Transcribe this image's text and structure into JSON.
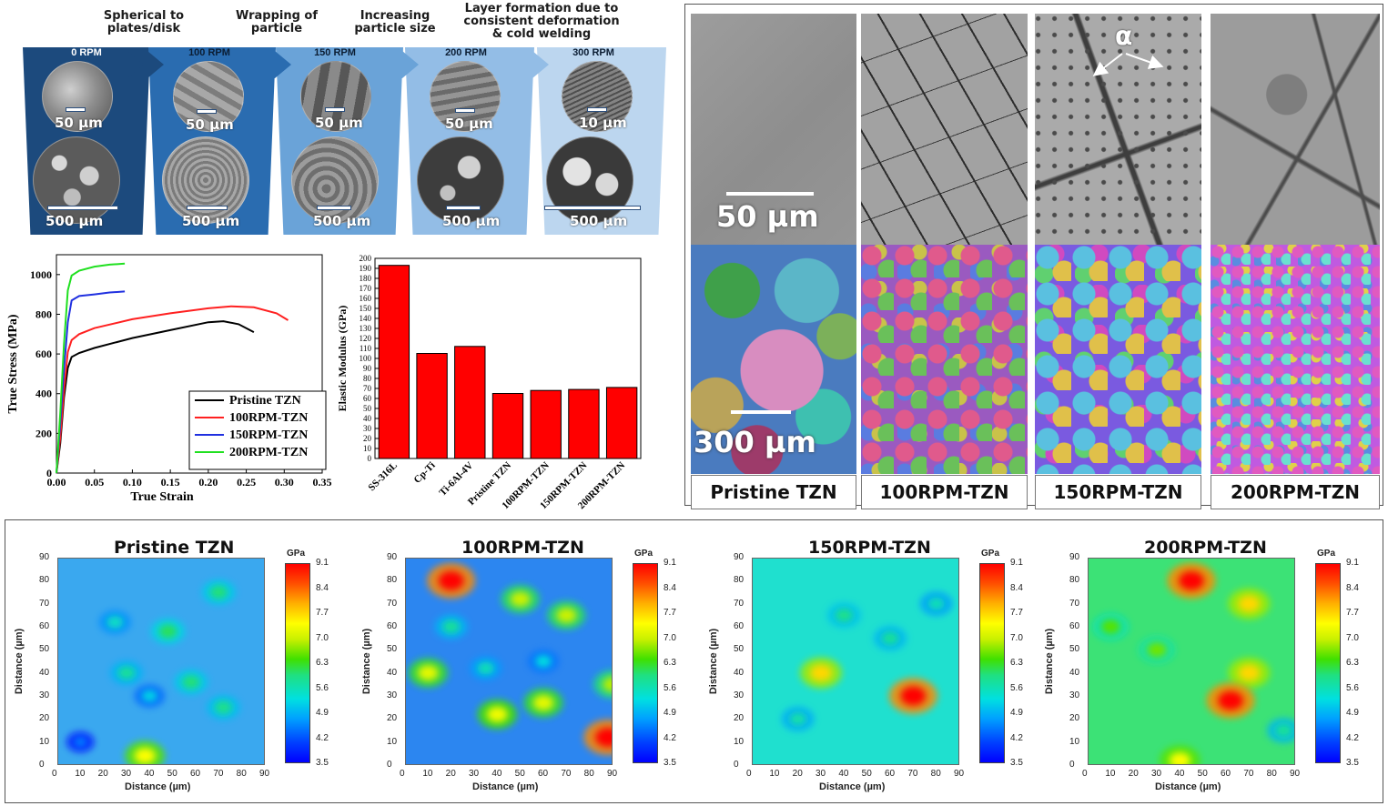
{
  "stages": [
    {
      "caption": "Spherical to\nplates/disk",
      "rpm": "0 RPM",
      "scale_small": "50 µm",
      "scale_big": "500 µm",
      "band_color": "#1c4a7d"
    },
    {
      "caption": "Wrapping of\nparticle",
      "rpm": "100 RPM",
      "scale_small": "50 µm",
      "scale_big": "500 µm",
      "band_color": "#2a6cb0"
    },
    {
      "caption": "Increasing\nparticle size",
      "rpm": "150 RPM",
      "scale_small": "50 µm",
      "scale_big": "500 µm",
      "band_color": "#6aa3d8"
    },
    {
      "caption": "Layer formation due to\nconsistent deformation\n& cold welding",
      "rpm": "200 RPM",
      "scale_small": "50 µm",
      "scale_big": "500 µm",
      "band_color": "#93bde6"
    },
    {
      "caption": "",
      "rpm": "300 RPM",
      "scale_small": "10 µm",
      "scale_big": "500 µm",
      "band_color": "#bcd6ef"
    }
  ],
  "stress_strain": {
    "chart_data": {
      "type": "line",
      "xlabel": "True Strain",
      "ylabel": "True Stress (MPa)",
      "xlim": [
        0,
        0.35
      ],
      "ylim": [
        0,
        1100
      ],
      "xticks": [
        "0.00",
        "0.05",
        "0.10",
        "0.15",
        "0.20",
        "0.25",
        "0.30",
        "0.35"
      ],
      "yticks": [
        "0",
        "200",
        "400",
        "600",
        "800",
        "1000"
      ],
      "legend_position": "bottom-right",
      "series": [
        {
          "name": "Pristine TZN",
          "color": "#000000",
          "points": [
            [
              0,
              0
            ],
            [
              0.005,
              150
            ],
            [
              0.01,
              380
            ],
            [
              0.015,
              530
            ],
            [
              0.02,
              585
            ],
            [
              0.03,
              605
            ],
            [
              0.05,
              630
            ],
            [
              0.1,
              680
            ],
            [
              0.15,
              720
            ],
            [
              0.2,
              760
            ],
            [
              0.22,
              765
            ],
            [
              0.24,
              750
            ],
            [
              0.26,
              710
            ]
          ]
        },
        {
          "name": "100RPM-TZN",
          "color": "#ff2020",
          "points": [
            [
              0,
              0
            ],
            [
              0.005,
              180
            ],
            [
              0.01,
              420
            ],
            [
              0.015,
              610
            ],
            [
              0.02,
              670
            ],
            [
              0.03,
              700
            ],
            [
              0.05,
              730
            ],
            [
              0.1,
              775
            ],
            [
              0.15,
              805
            ],
            [
              0.2,
              830
            ],
            [
              0.23,
              840
            ],
            [
              0.26,
              835
            ],
            [
              0.29,
              805
            ],
            [
              0.305,
              770
            ]
          ]
        },
        {
          "name": "150RPM-TZN",
          "color": "#2030e0",
          "points": [
            [
              0,
              0
            ],
            [
              0.005,
              250
            ],
            [
              0.01,
              520
            ],
            [
              0.015,
              760
            ],
            [
              0.02,
              870
            ],
            [
              0.03,
              892
            ],
            [
              0.05,
              900
            ],
            [
              0.07,
              910
            ],
            [
              0.09,
              915
            ]
          ]
        },
        {
          "name": "200RPM-TZN",
          "color": "#20e020",
          "points": [
            [
              0,
              0
            ],
            [
              0.005,
              300
            ],
            [
              0.01,
              650
            ],
            [
              0.015,
              920
            ],
            [
              0.02,
              995
            ],
            [
              0.03,
              1020
            ],
            [
              0.05,
              1040
            ],
            [
              0.07,
              1050
            ],
            [
              0.09,
              1055
            ]
          ]
        }
      ]
    }
  },
  "modulus": {
    "chart_data": {
      "type": "bar",
      "ylabel": "Elastic Modulus (GPa)",
      "ylim": [
        0,
        200
      ],
      "yticks": [
        "0",
        "10",
        "20",
        "30",
        "40",
        "50",
        "60",
        "70",
        "80",
        "90",
        "100",
        "110",
        "120",
        "130",
        "140",
        "150",
        "160",
        "170",
        "180",
        "190",
        "200"
      ],
      "categories": [
        "SS-316L",
        "Cp-Ti",
        "Ti-6Al-4V",
        "Pristine TZN",
        "100RPM-TZN",
        "150RPM-TZN",
        "200RPM-TZN"
      ],
      "values": [
        193,
        105,
        112,
        65,
        68,
        69,
        71
      ],
      "bar_color": "#ff0000"
    }
  },
  "micro": {
    "columns": [
      "Pristine TZN",
      "100RPM-TZN",
      "150RPM-TZN",
      "200RPM-TZN"
    ],
    "scale_top": "50 µm",
    "scale_ebsd": "300 µm",
    "alpha_label": "α"
  },
  "maps": {
    "titles": [
      "Pristine TZN",
      "100RPM-TZN",
      "150RPM-TZN",
      "200RPM-TZN"
    ],
    "xlabel": "Distance (µm)",
    "ylabel": "Distance (µm)",
    "ticks": [
      "0",
      "10",
      "20",
      "30",
      "40",
      "50",
      "60",
      "70",
      "80",
      "90"
    ],
    "colorbar_unit": "GPa",
    "colorbar_ticks": [
      "9.1",
      "8.4",
      "7.7",
      "7.0",
      "6.3",
      "5.6",
      "4.9",
      "4.2",
      "3.5"
    ],
    "chart_data": [
      {
        "type": "heatmap",
        "title": "Pristine TZN",
        "background": "#3aa8ef",
        "spots": [
          [
            70,
            75,
            6.0
          ],
          [
            30,
            40,
            5.8
          ],
          [
            48,
            58,
            6.1
          ],
          [
            58,
            36,
            6.0
          ],
          [
            72,
            25,
            5.9
          ],
          [
            25,
            62,
            5.5
          ],
          [
            38,
            4,
            7.4
          ],
          [
            40,
            30,
            5.2
          ],
          [
            10,
            10,
            4.5
          ]
        ]
      },
      {
        "type": "heatmap",
        "title": "100RPM-TZN",
        "background": "#2c86f0",
        "spots": [
          [
            20,
            80,
            9.1
          ],
          [
            50,
            72,
            7.0
          ],
          [
            70,
            65,
            7.0
          ],
          [
            20,
            60,
            5.8
          ],
          [
            10,
            40,
            7.2
          ],
          [
            40,
            22,
            7.3
          ],
          [
            60,
            27,
            7.2
          ],
          [
            90,
            35,
            6.9
          ],
          [
            88,
            12,
            9.1
          ],
          [
            35,
            42,
            5.6
          ],
          [
            60,
            45,
            5.3
          ]
        ]
      },
      {
        "type": "heatmap",
        "title": "150RPM-TZN",
        "background": "#1fe0cf",
        "spots": [
          [
            30,
            40,
            7.7
          ],
          [
            70,
            30,
            9.1
          ],
          [
            40,
            65,
            5.9
          ],
          [
            60,
            55,
            5.8
          ],
          [
            20,
            20,
            5.7
          ],
          [
            80,
            70,
            5.6
          ]
        ]
      },
      {
        "type": "heatmap",
        "title": "200RPM-TZN",
        "background": "#3ce276",
        "spots": [
          [
            45,
            80,
            9.1
          ],
          [
            70,
            70,
            7.7
          ],
          [
            10,
            60,
            6.5
          ],
          [
            70,
            40,
            7.7
          ],
          [
            62,
            28,
            9.1
          ],
          [
            40,
            2,
            7.4
          ],
          [
            30,
            50,
            6.6
          ],
          [
            85,
            15,
            5.8
          ]
        ]
      }
    ]
  }
}
